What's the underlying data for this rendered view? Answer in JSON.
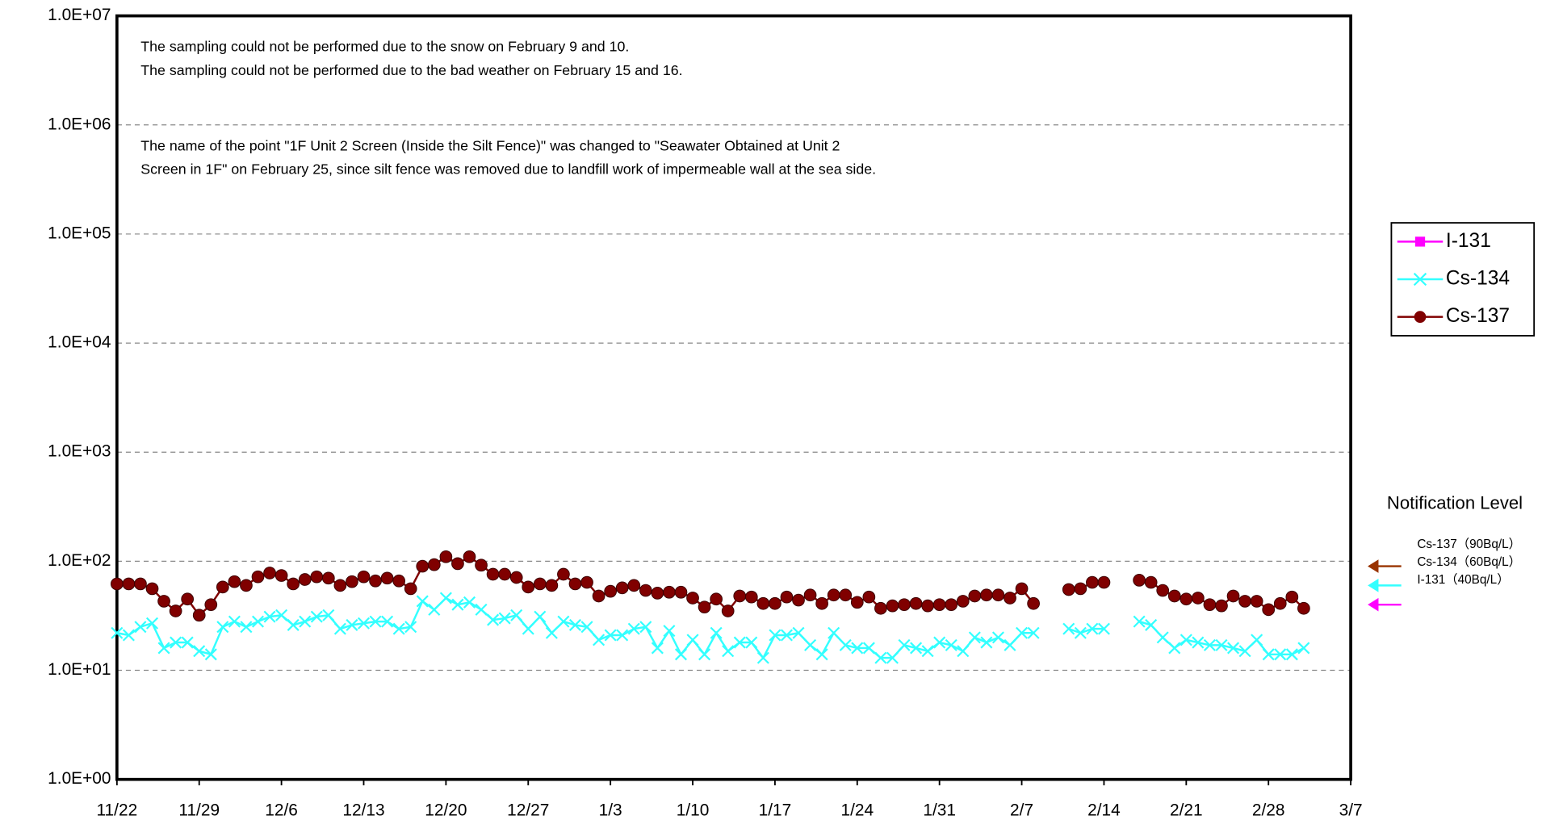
{
  "chart_data": {
    "type": "line",
    "log_scale": true,
    "grid": true,
    "legend": "right",
    "annotations": [
      "The sampling could not be performed due to the snow on February 9 and 10.",
      "The sampling could not be performed due to the bad weather on February 15 and 16.",
      "The name of the point \"1F Unit 2 Screen (Inside the Silt Fence)\" was changed to \"Seawater Obtained at Unit 2",
      "Screen in 1F\" on February 25, since silt fence was removed due to landfill work of impermeable wall at the sea side."
    ],
    "ylim": [
      1,
      10000000
    ],
    "yticks": [
      {
        "value": 1,
        "label": "1.0E+00"
      },
      {
        "value": 10,
        "label": "1.0E+01"
      },
      {
        "value": 100,
        "label": "1.0E+02"
      },
      {
        "value": 1000,
        "label": "1.0E+03"
      },
      {
        "value": 10000,
        "label": "1.0E+04"
      },
      {
        "value": 100000,
        "label": "1.0E+05"
      },
      {
        "value": 1000000,
        "label": "1.0E+06"
      },
      {
        "value": 10000000,
        "label": "1.0E+07"
      }
    ],
    "xlim": [
      "11/22",
      "3/7"
    ],
    "xticks": [
      "11/22",
      "11/29",
      "12/6",
      "12/13",
      "12/20",
      "12/27",
      "1/3",
      "1/10",
      "1/17",
      "1/24",
      "1/31",
      "2/7",
      "2/14",
      "2/21",
      "2/28",
      "3/7"
    ],
    "x": [
      "11/22",
      "11/23",
      "11/24",
      "11/25",
      "11/26",
      "11/27",
      "11/28",
      "11/29",
      "11/30",
      "12/1",
      "12/2",
      "12/3",
      "12/4",
      "12/5",
      "12/6",
      "12/7",
      "12/8",
      "12/9",
      "12/10",
      "12/11",
      "12/12",
      "12/13",
      "12/14",
      "12/15",
      "12/16",
      "12/17",
      "12/18",
      "12/19",
      "12/20",
      "12/21",
      "12/22",
      "12/23",
      "12/24",
      "12/25",
      "12/26",
      "12/27",
      "12/28",
      "12/29",
      "12/30",
      "12/31",
      "1/1",
      "1/2",
      "1/3",
      "1/4",
      "1/5",
      "1/6",
      "1/7",
      "1/8",
      "1/9",
      "1/10",
      "1/11",
      "1/12",
      "1/13",
      "1/14",
      "1/15",
      "1/16",
      "1/17",
      "1/18",
      "1/19",
      "1/20",
      "1/21",
      "1/22",
      "1/23",
      "1/24",
      "1/25",
      "1/26",
      "1/27",
      "1/28",
      "1/29",
      "1/30",
      "1/31",
      "2/1",
      "2/2",
      "2/3",
      "2/4",
      "2/5",
      "2/6",
      "2/7",
      "2/8",
      "2/9",
      "2/10",
      "2/11",
      "2/12",
      "2/13",
      "2/14",
      "2/15",
      "2/16",
      "2/17",
      "2/18",
      "2/19",
      "2/20",
      "2/21",
      "2/22",
      "2/23",
      "2/24",
      "2/25",
      "2/26",
      "2/27",
      "2/28",
      "3/1",
      "3/2",
      "3/3"
    ],
    "series": [
      {
        "name": "I-131",
        "color": "#ff00ff",
        "marker": "square",
        "values": [
          null,
          null,
          null,
          null,
          null,
          null,
          null,
          null,
          null,
          null,
          null,
          null,
          null,
          null,
          null,
          null,
          null,
          null,
          null,
          null,
          null,
          null,
          null,
          null,
          null,
          null,
          null,
          null,
          null,
          null,
          null,
          null,
          null,
          null,
          null,
          null,
          null,
          null,
          null,
          null,
          null,
          null,
          null,
          null,
          null,
          null,
          null,
          null,
          null,
          null,
          null,
          null,
          null,
          null,
          null,
          null,
          null,
          null,
          null,
          null,
          null,
          null,
          null,
          null,
          null,
          null,
          null,
          null,
          null,
          null,
          null,
          null,
          null,
          null,
          null,
          null,
          null,
          null,
          null,
          null,
          null,
          null,
          null,
          null,
          null,
          null,
          null,
          null,
          null,
          null,
          null,
          null,
          null,
          null,
          null,
          null,
          null,
          null,
          null,
          null,
          null,
          null
        ]
      },
      {
        "name": "Cs-134",
        "color": "#33ffff",
        "marker": "x",
        "values": [
          22,
          21,
          25,
          27,
          16,
          18,
          18,
          15,
          14,
          25,
          28,
          25,
          28,
          31,
          32,
          26,
          28,
          31,
          32,
          24,
          26,
          27,
          28,
          28,
          24,
          25,
          43,
          36,
          46,
          40,
          42,
          36,
          29,
          30,
          32,
          24,
          31,
          22,
          28,
          26,
          25,
          19,
          21,
          21,
          24,
          25,
          16,
          23,
          14,
          19,
          14,
          22,
          15,
          18,
          18,
          13,
          21,
          21,
          22,
          17,
          14,
          22,
          17,
          16,
          16,
          13,
          13,
          17,
          16,
          15,
          18,
          17,
          15,
          20,
          18,
          20,
          17,
          22,
          22,
          null,
          null,
          24,
          22,
          24,
          24,
          null,
          null,
          28,
          26,
          20,
          16,
          19,
          18,
          17,
          17,
          16,
          15,
          19,
          14,
          14,
          14,
          16
        ]
      },
      {
        "name": "Cs-137",
        "color": "#800000",
        "marker": "circle",
        "values": [
          62,
          62,
          62,
          56,
          43,
          35,
          45,
          32,
          40,
          58,
          65,
          60,
          72,
          78,
          74,
          62,
          68,
          72,
          70,
          60,
          65,
          72,
          66,
          70,
          66,
          56,
          90,
          93,
          110,
          95,
          110,
          92,
          76,
          76,
          71,
          58,
          62,
          60,
          76,
          62,
          64,
          48,
          53,
          57,
          60,
          54,
          51,
          52,
          52,
          46,
          38,
          45,
          35,
          48,
          47,
          41,
          41,
          47,
          44,
          49,
          41,
          49,
          49,
          42,
          47,
          37,
          39,
          40,
          41,
          39,
          40,
          40,
          43,
          48,
          49,
          49,
          46,
          56,
          41,
          null,
          null,
          55,
          56,
          64,
          64,
          null,
          null,
          67,
          64,
          54,
          48,
          45,
          46,
          40,
          39,
          48,
          43,
          43,
          36,
          41,
          47,
          37
        ]
      }
    ],
    "notification_levels": {
      "title": "Notification Level",
      "items": [
        {
          "label": "Cs-137（90Bq/L）",
          "value": 90,
          "color": "#993300"
        },
        {
          "label": "Cs-134（60Bq/L）",
          "value": 60,
          "color": "#33ffff"
        },
        {
          "label": "I-131（40Bq/L）",
          "value": 40,
          "color": "#ff00ff"
        }
      ]
    }
  }
}
